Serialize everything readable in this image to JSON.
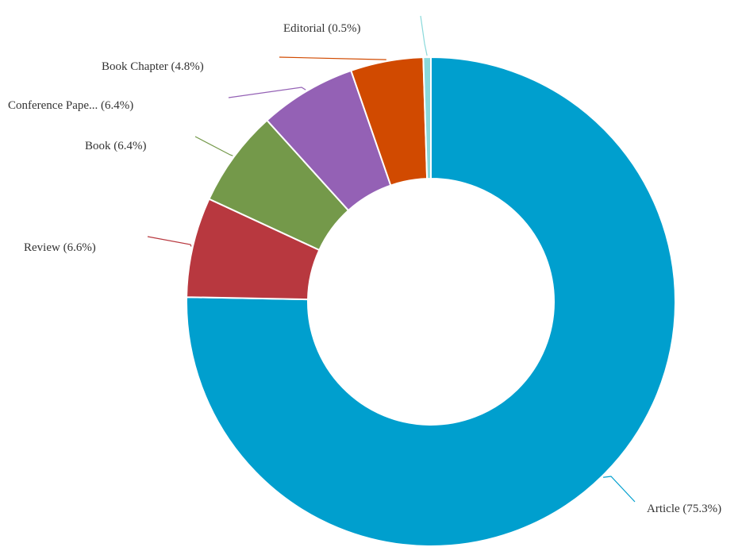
{
  "chart_data": {
    "type": "pie",
    "variant": "donut",
    "title": "",
    "legend": "none",
    "slices": [
      {
        "label": "Article",
        "percent": 75.3,
        "display": "Article (75.3%)",
        "color": "#009fce"
      },
      {
        "label": "Review",
        "percent": 6.6,
        "display": "Review (6.6%)",
        "color": "#b8383f"
      },
      {
        "label": "Book",
        "percent": 6.4,
        "display": "Book (6.4%)",
        "color": "#74994a"
      },
      {
        "label": "Conference Pape...",
        "percent": 6.4,
        "display": "Conference Pape... (6.4%)",
        "color": "#9461b5"
      },
      {
        "label": "Book Chapter",
        "percent": 4.8,
        "display": "Book Chapter (4.8%)",
        "color": "#d14a00"
      },
      {
        "label": "Editorial",
        "percent": 0.5,
        "display": "Editorial (0.5%)",
        "color": "#8ad9db"
      }
    ]
  }
}
